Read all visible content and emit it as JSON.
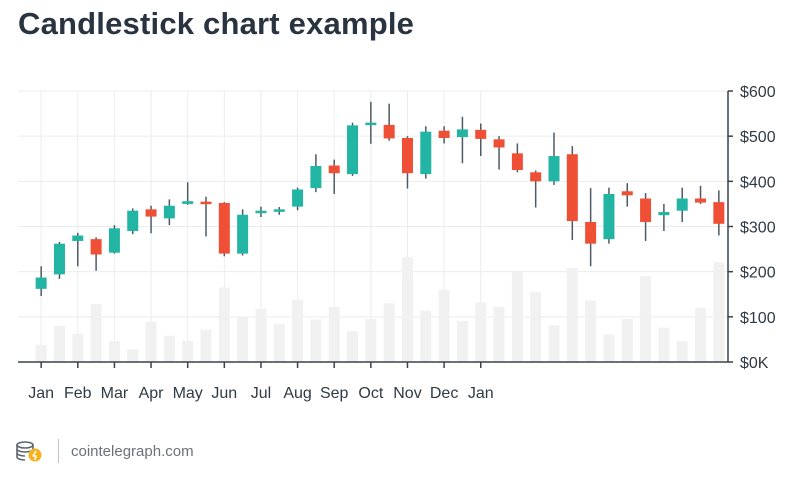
{
  "title": "Candlestick chart example",
  "source": "cointelegraph.com",
  "colors": {
    "up": "#22b5a4",
    "down": "#ef4f35",
    "wick": "#4e5a66",
    "volume": "#f1f1f1",
    "grid": "#ececec",
    "axis": "#3a424a",
    "text": "#2f3a44"
  },
  "chart_data": {
    "type": "candlestick",
    "xlabel": "",
    "ylabel": "",
    "ylim": [
      0,
      600
    ],
    "y_ticks": [
      {
        "value": 0,
        "label": "$0K"
      },
      {
        "value": 100,
        "label": "$100"
      },
      {
        "value": 200,
        "label": "$200"
      },
      {
        "value": 300,
        "label": "$300"
      },
      {
        "value": 400,
        "label": "$400"
      },
      {
        "value": 500,
        "label": "$500"
      },
      {
        "value": 600,
        "label": "$600"
      }
    ],
    "x_labels": [
      {
        "label": "Jan",
        "index": 0.5
      },
      {
        "label": "Feb",
        "index": 2.5
      },
      {
        "label": "Mar",
        "index": 4.5
      },
      {
        "label": "Apr",
        "index": 6.5
      },
      {
        "label": "May",
        "index": 8.5
      },
      {
        "label": "Jun",
        "index": 10.5
      },
      {
        "label": "Jul",
        "index": 12.5
      },
      {
        "label": "Aug",
        "index": 14.5
      },
      {
        "label": "Sep",
        "index": 16.5
      },
      {
        "label": "Oct",
        "index": 18.5
      },
      {
        "label": "Nov",
        "index": 20.5
      },
      {
        "label": "Dec",
        "index": 22.5
      },
      {
        "label": "Jan",
        "index": 24.5
      }
    ],
    "grid": true,
    "candles": [
      {
        "open": 162,
        "close": 187,
        "high": 212,
        "low": 146,
        "volume": 38
      },
      {
        "open": 194,
        "close": 262,
        "high": 266,
        "low": 184,
        "volume": 80
      },
      {
        "open": 268,
        "close": 280,
        "high": 286,
        "low": 212,
        "volume": 62
      },
      {
        "open": 272,
        "close": 238,
        "high": 276,
        "low": 202,
        "volume": 128
      },
      {
        "open": 242,
        "close": 296,
        "high": 303,
        "low": 240,
        "volume": 46
      },
      {
        "open": 290,
        "close": 335,
        "high": 340,
        "low": 283,
        "volume": 28
      },
      {
        "open": 338,
        "close": 322,
        "high": 346,
        "low": 285,
        "volume": 89
      },
      {
        "open": 318,
        "close": 346,
        "high": 360,
        "low": 303,
        "volume": 58
      },
      {
        "open": 350,
        "close": 356,
        "high": 398,
        "low": 348,
        "volume": 47
      },
      {
        "open": 355,
        "close": 350,
        "high": 366,
        "low": 278,
        "volume": 72
      },
      {
        "open": 352,
        "close": 240,
        "high": 354,
        "low": 234,
        "volume": 165
      },
      {
        "open": 240,
        "close": 326,
        "high": 338,
        "low": 236,
        "volume": 101
      },
      {
        "open": 331,
        "close": 335,
        "high": 344,
        "low": 321,
        "volume": 118
      },
      {
        "open": 333,
        "close": 338,
        "high": 343,
        "low": 326,
        "volume": 84
      },
      {
        "open": 344,
        "close": 382,
        "high": 386,
        "low": 336,
        "volume": 138
      },
      {
        "open": 385,
        "close": 434,
        "high": 460,
        "low": 376,
        "volume": 94
      },
      {
        "open": 435,
        "close": 418,
        "high": 448,
        "low": 372,
        "volume": 122
      },
      {
        "open": 416,
        "close": 524,
        "high": 530,
        "low": 412,
        "volume": 68
      },
      {
        "open": 526,
        "close": 530,
        "high": 576,
        "low": 483,
        "volume": 95
      },
      {
        "open": 525,
        "close": 495,
        "high": 572,
        "low": 490,
        "volume": 130
      },
      {
        "open": 496,
        "close": 418,
        "high": 500,
        "low": 384,
        "volume": 232
      },
      {
        "open": 416,
        "close": 510,
        "high": 522,
        "low": 406,
        "volume": 114
      },
      {
        "open": 512,
        "close": 496,
        "high": 522,
        "low": 484,
        "volume": 160
      },
      {
        "open": 498,
        "close": 515,
        "high": 543,
        "low": 440,
        "volume": 91
      },
      {
        "open": 514,
        "close": 494,
        "high": 528,
        "low": 456,
        "volume": 132
      },
      {
        "open": 493,
        "close": 475,
        "high": 500,
        "low": 426,
        "volume": 122
      },
      {
        "open": 462,
        "close": 425,
        "high": 484,
        "low": 420,
        "volume": 199
      },
      {
        "open": 420,
        "close": 400,
        "high": 424,
        "low": 342,
        "volume": 155
      },
      {
        "open": 400,
        "close": 456,
        "high": 508,
        "low": 392,
        "volume": 81
      },
      {
        "open": 460,
        "close": 312,
        "high": 478,
        "low": 270,
        "volume": 208
      },
      {
        "open": 310,
        "close": 262,
        "high": 385,
        "low": 212,
        "volume": 136
      },
      {
        "open": 272,
        "close": 372,
        "high": 386,
        "low": 262,
        "volume": 61
      },
      {
        "open": 378,
        "close": 369,
        "high": 396,
        "low": 344,
        "volume": 95
      },
      {
        "open": 362,
        "close": 310,
        "high": 374,
        "low": 268,
        "volume": 190
      },
      {
        "open": 325,
        "close": 332,
        "high": 350,
        "low": 290,
        "volume": 76
      },
      {
        "open": 335,
        "close": 362,
        "high": 386,
        "low": 310,
        "volume": 46
      },
      {
        "open": 362,
        "close": 353,
        "high": 390,
        "low": 350,
        "volume": 120
      },
      {
        "open": 354,
        "close": 306,
        "high": 380,
        "low": 280,
        "volume": 221
      }
    ]
  }
}
